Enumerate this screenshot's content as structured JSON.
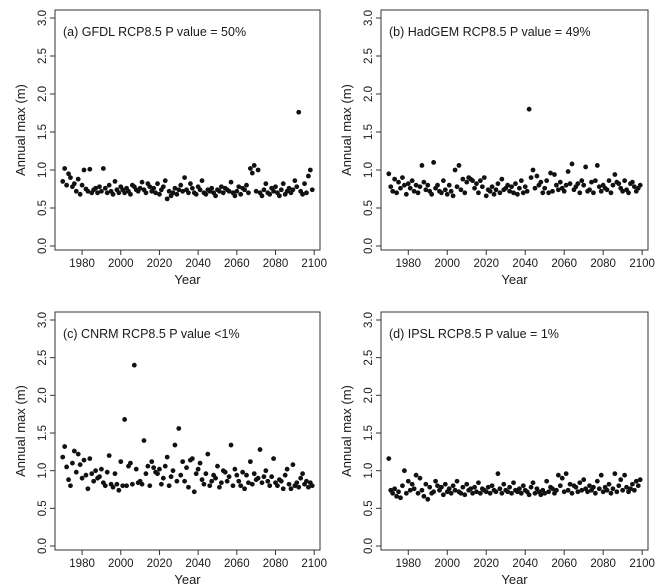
{
  "chart_data": [
    {
      "type": "scatter",
      "title": "(a) GFDL RCP8.5 P value = 50%",
      "xlabel": "Year",
      "ylabel": "Annual max (m)",
      "xlim": [
        1966,
        2103
      ],
      "ylim": [
        0,
        3
      ],
      "xticks": [
        1980,
        2000,
        2020,
        2040,
        2060,
        2080,
        2100
      ],
      "yticks": [
        0.0,
        0.5,
        1.0,
        1.5,
        2.0,
        2.5,
        3.0
      ],
      "ytick_labels": [
        "0.0",
        "0.5",
        "1.0",
        "1.5",
        "2.0",
        "2.5",
        "3.0"
      ],
      "grid": false,
      "x": [
        1970,
        1971,
        1972,
        1973,
        1974,
        1975,
        1976,
        1977,
        1978,
        1979,
        1980,
        1981,
        1982,
        1983,
        1984,
        1985,
        1986,
        1987,
        1988,
        1989,
        1990,
        1991,
        1992,
        1993,
        1994,
        1995,
        1996,
        1997,
        1998,
        1999,
        2000,
        2001,
        2002,
        2003,
        2004,
        2005,
        2006,
        2007,
        2008,
        2009,
        2010,
        2011,
        2012,
        2013,
        2014,
        2015,
        2016,
        2017,
        2018,
        2019,
        2020,
        2021,
        2022,
        2023,
        2024,
        2025,
        2026,
        2027,
        2028,
        2029,
        2030,
        2031,
        2032,
        2033,
        2034,
        2035,
        2036,
        2037,
        2038,
        2039,
        2040,
        2041,
        2042,
        2043,
        2044,
        2045,
        2046,
        2047,
        2048,
        2049,
        2050,
        2051,
        2052,
        2053,
        2054,
        2055,
        2056,
        2057,
        2058,
        2059,
        2060,
        2061,
        2062,
        2063,
        2064,
        2065,
        2066,
        2067,
        2068,
        2069,
        2070,
        2071,
        2072,
        2073,
        2074,
        2075,
        2076,
        2077,
        2078,
        2079,
        2080,
        2081,
        2082,
        2083,
        2084,
        2085,
        2086,
        2087,
        2088,
        2089,
        2090,
        2091,
        2092,
        2093,
        2094,
        2095,
        2096,
        2097,
        2098,
        2099
      ],
      "y": [
        0.85,
        1.02,
        0.8,
        0.95,
        0.9,
        0.78,
        0.82,
        0.72,
        0.88,
        0.68,
        0.8,
        1.0,
        0.75,
        0.72,
        1.01,
        0.7,
        0.74,
        0.76,
        0.7,
        0.78,
        0.72,
        1.02,
        0.76,
        0.7,
        0.8,
        0.72,
        0.68,
        0.85,
        0.74,
        0.7,
        0.78,
        0.74,
        0.7,
        0.76,
        0.72,
        0.68,
        0.8,
        0.78,
        0.74,
        0.72,
        0.76,
        0.84,
        0.74,
        0.7,
        0.82,
        0.78,
        0.72,
        0.76,
        0.7,
        0.82,
        0.68,
        0.74,
        0.78,
        0.86,
        0.62,
        0.72,
        0.66,
        0.7,
        0.76,
        0.68,
        0.74,
        0.8,
        0.72,
        0.9,
        0.74,
        0.7,
        0.82,
        0.76,
        0.7,
        0.68,
        0.78,
        0.74,
        0.86,
        0.7,
        0.68,
        0.74,
        0.72,
        0.76,
        0.7,
        0.66,
        0.74,
        0.72,
        0.78,
        0.7,
        0.76,
        0.74,
        0.72,
        0.84,
        0.7,
        0.66,
        0.72,
        0.78,
        0.68,
        0.76,
        0.74,
        0.8,
        0.7,
        1.02,
        0.96,
        1.06,
        0.72,
        1.0,
        0.7,
        0.66,
        0.74,
        0.82,
        0.7,
        0.68,
        0.76,
        0.72,
        0.78,
        0.7,
        0.66,
        0.74,
        0.82,
        0.68,
        0.72,
        0.76,
        0.7,
        0.74,
        0.86,
        0.78,
        1.76,
        0.72,
        0.68,
        0.82,
        0.7,
        0.92,
        1.0,
        0.74
      ]
    },
    {
      "type": "scatter",
      "title": "(b) HadGEM RCP8.5 P value = 49%",
      "xlabel": "Year",
      "ylabel": "Annual max (m)",
      "xlim": [
        1966,
        2103
      ],
      "ylim": [
        0,
        3
      ],
      "xticks": [
        1980,
        2000,
        2020,
        2040,
        2060,
        2080,
        2100
      ],
      "yticks": [
        0.0,
        0.5,
        1.0,
        1.5,
        2.0,
        2.5,
        3.0
      ],
      "ytick_labels": [
        "0.0",
        "0.5",
        "1.0",
        "1.5",
        "2.0",
        "2.5",
        "3.0"
      ],
      "grid": false,
      "x": [
        1970,
        1971,
        1972,
        1973,
        1974,
        1975,
        1976,
        1977,
        1978,
        1979,
        1980,
        1981,
        1982,
        1983,
        1984,
        1985,
        1986,
        1987,
        1988,
        1989,
        1990,
        1991,
        1992,
        1993,
        1994,
        1995,
        1996,
        1997,
        1998,
        1999,
        2000,
        2001,
        2002,
        2003,
        2004,
        2005,
        2006,
        2007,
        2008,
        2009,
        2010,
        2011,
        2012,
        2013,
        2014,
        2015,
        2016,
        2017,
        2018,
        2019,
        2020,
        2021,
        2022,
        2023,
        2024,
        2025,
        2026,
        2027,
        2028,
        2029,
        2030,
        2031,
        2032,
        2033,
        2034,
        2035,
        2036,
        2037,
        2038,
        2039,
        2040,
        2041,
        2042,
        2043,
        2044,
        2045,
        2046,
        2047,
        2048,
        2049,
        2050,
        2051,
        2052,
        2053,
        2054,
        2055,
        2056,
        2057,
        2058,
        2059,
        2060,
        2061,
        2062,
        2063,
        2064,
        2065,
        2066,
        2067,
        2068,
        2069,
        2070,
        2071,
        2072,
        2073,
        2074,
        2075,
        2076,
        2077,
        2078,
        2079,
        2080,
        2081,
        2082,
        2083,
        2084,
        2085,
        2086,
        2087,
        2088,
        2089,
        2090,
        2091,
        2092,
        2093,
        2094,
        2095,
        2096,
        2097,
        2098,
        2099
      ],
      "y": [
        0.95,
        0.78,
        0.72,
        0.88,
        0.7,
        0.84,
        0.76,
        0.9,
        0.8,
        0.68,
        0.82,
        0.76,
        0.86,
        0.72,
        0.8,
        0.7,
        0.78,
        1.06,
        0.84,
        0.74,
        0.8,
        0.72,
        0.68,
        1.1,
        0.76,
        0.8,
        0.72,
        0.7,
        0.86,
        0.74,
        0.68,
        0.8,
        0.72,
        0.66,
        1.0,
        0.78,
        1.06,
        0.74,
        0.88,
        0.7,
        0.84,
        0.9,
        0.88,
        0.86,
        0.76,
        0.82,
        0.7,
        0.86,
        0.78,
        0.9,
        0.66,
        0.74,
        0.72,
        0.78,
        0.68,
        0.74,
        0.82,
        0.7,
        0.88,
        0.74,
        0.76,
        0.8,
        0.72,
        0.78,
        0.7,
        0.82,
        0.68,
        0.76,
        0.86,
        0.7,
        0.78,
        0.72,
        1.8,
        0.9,
        1.0,
        0.76,
        0.92,
        0.8,
        0.84,
        0.7,
        0.76,
        0.86,
        0.7,
        0.96,
        0.72,
        0.94,
        0.8,
        0.74,
        0.84,
        0.76,
        0.72,
        0.8,
        0.98,
        0.82,
        1.08,
        0.74,
        0.78,
        0.82,
        0.7,
        0.86,
        0.8,
        1.04,
        0.72,
        0.74,
        0.84,
        0.7,
        0.86,
        1.06,
        0.78,
        0.72,
        0.8,
        0.76,
        0.74,
        0.86,
        0.7,
        0.8,
        0.94,
        0.84,
        0.82,
        0.76,
        0.72,
        0.86,
        0.74,
        0.7,
        0.82,
        0.84,
        0.78,
        0.72,
        0.76,
        0.8
      ]
    },
    {
      "type": "scatter",
      "title": "(c) CNRM RCP8.5 P value <1%",
      "xlabel": "Year",
      "ylabel": "Annual max (m)",
      "xlim": [
        1966,
        2103
      ],
      "ylim": [
        0,
        3
      ],
      "xticks": [
        1980,
        2000,
        2020,
        2040,
        2060,
        2080,
        2100
      ],
      "yticks": [
        0.0,
        0.5,
        1.0,
        1.5,
        2.0,
        2.5,
        3.0
      ],
      "ytick_labels": [
        "0.0",
        "0.5",
        "1.0",
        "1.5",
        "2.0",
        "2.5",
        "3.0"
      ],
      "grid": false,
      "x": [
        1970,
        1971,
        1972,
        1973,
        1974,
        1975,
        1976,
        1977,
        1978,
        1979,
        1980,
        1981,
        1982,
        1983,
        1984,
        1985,
        1986,
        1987,
        1988,
        1989,
        1990,
        1991,
        1992,
        1993,
        1994,
        1995,
        1996,
        1997,
        1998,
        1999,
        2000,
        2001,
        2002,
        2003,
        2004,
        2005,
        2006,
        2007,
        2008,
        2009,
        2010,
        2011,
        2012,
        2013,
        2014,
        2015,
        2016,
        2017,
        2018,
        2019,
        2020,
        2021,
        2022,
        2023,
        2024,
        2025,
        2026,
        2027,
        2028,
        2029,
        2030,
        2031,
        2032,
        2033,
        2034,
        2035,
        2036,
        2037,
        2038,
        2039,
        2040,
        2041,
        2042,
        2043,
        2044,
        2045,
        2046,
        2047,
        2048,
        2049,
        2050,
        2051,
        2052,
        2053,
        2054,
        2055,
        2056,
        2057,
        2058,
        2059,
        2060,
        2061,
        2062,
        2063,
        2064,
        2065,
        2066,
        2067,
        2068,
        2069,
        2070,
        2071,
        2072,
        2073,
        2074,
        2075,
        2076,
        2077,
        2078,
        2079,
        2080,
        2081,
        2082,
        2083,
        2084,
        2085,
        2086,
        2087,
        2088,
        2089,
        2090,
        2091,
        2092,
        2093,
        2094,
        2095,
        2096,
        2097,
        2098,
        2099
      ],
      "y": [
        1.18,
        1.32,
        1.05,
        0.88,
        0.8,
        1.1,
        1.26,
        0.98,
        1.22,
        1.08,
        0.9,
        1.14,
        0.94,
        0.76,
        1.16,
        0.96,
        0.86,
        1.0,
        0.9,
        0.92,
        1.02,
        0.84,
        0.8,
        0.98,
        1.2,
        0.82,
        0.78,
        0.96,
        0.82,
        0.74,
        1.12,
        0.8,
        1.68,
        0.8,
        1.06,
        1.1,
        0.82,
        2.4,
        1.02,
        0.84,
        0.86,
        0.82,
        1.4,
        0.96,
        1.06,
        0.8,
        1.12,
        1.04,
        0.98,
        0.96,
        1.02,
        0.82,
        0.9,
        1.06,
        1.18,
        0.8,
        0.92,
        1.0,
        1.34,
        0.86,
        1.56,
        0.94,
        1.12,
        0.86,
        1.04,
        0.78,
        1.14,
        1.16,
        0.72,
        0.96,
        1.02,
        1.1,
        0.88,
        0.82,
        0.96,
        1.22,
        0.8,
        0.86,
        0.94,
        0.9,
        1.06,
        0.78,
        0.84,
        1.0,
        0.98,
        0.86,
        0.92,
        1.34,
        0.8,
        1.02,
        0.94,
        0.86,
        0.8,
        0.98,
        0.76,
        0.94,
        0.84,
        1.12,
        0.82,
        0.96,
        0.88,
        0.9,
        1.28,
        0.84,
        0.92,
        1.0,
        0.86,
        0.8,
        0.92,
        1.16,
        0.84,
        0.8,
        0.88,
        0.86,
        0.76,
        0.94,
        1.02,
        0.82,
        0.76,
        1.08,
        0.8,
        0.84,
        0.78,
        0.9,
        0.96,
        0.82,
        0.86,
        0.78,
        0.84,
        0.8
      ]
    },
    {
      "type": "scatter",
      "title": "(d) IPSL RCP8.5 P value = 1%",
      "xlabel": "Year",
      "ylabel": "Annual max (m)",
      "xlim": [
        1966,
        2103
      ],
      "ylim": [
        0,
        3
      ],
      "xticks": [
        1980,
        2000,
        2020,
        2040,
        2060,
        2080,
        2100
      ],
      "yticks": [
        0.0,
        0.5,
        1.0,
        1.5,
        2.0,
        2.5,
        3.0
      ],
      "ytick_labels": [
        "0.0",
        "0.5",
        "1.0",
        "1.5",
        "2.0",
        "2.5",
        "3.0"
      ],
      "grid": false,
      "x": [
        1970,
        1971,
        1972,
        1973,
        1974,
        1975,
        1976,
        1977,
        1978,
        1979,
        1980,
        1981,
        1982,
        1983,
        1984,
        1985,
        1986,
        1987,
        1988,
        1989,
        1990,
        1991,
        1992,
        1993,
        1994,
        1995,
        1996,
        1997,
        1998,
        1999,
        2000,
        2001,
        2002,
        2003,
        2004,
        2005,
        2006,
        2007,
        2008,
        2009,
        2010,
        2011,
        2012,
        2013,
        2014,
        2015,
        2016,
        2017,
        2018,
        2019,
        2020,
        2021,
        2022,
        2023,
        2024,
        2025,
        2026,
        2027,
        2028,
        2029,
        2030,
        2031,
        2032,
        2033,
        2034,
        2035,
        2036,
        2037,
        2038,
        2039,
        2040,
        2041,
        2042,
        2043,
        2044,
        2045,
        2046,
        2047,
        2048,
        2049,
        2050,
        2051,
        2052,
        2053,
        2054,
        2055,
        2056,
        2057,
        2058,
        2059,
        2060,
        2061,
        2062,
        2063,
        2064,
        2065,
        2066,
        2067,
        2068,
        2069,
        2070,
        2071,
        2072,
        2073,
        2074,
        2075,
        2076,
        2077,
        2078,
        2079,
        2080,
        2081,
        2082,
        2083,
        2084,
        2085,
        2086,
        2087,
        2088,
        2089,
        2090,
        2091,
        2092,
        2093,
        2094,
        2095,
        2096,
        2097,
        2098,
        2099
      ],
      "y": [
        1.16,
        0.74,
        0.7,
        0.76,
        0.66,
        0.72,
        0.64,
        0.8,
        1.0,
        0.7,
        0.86,
        0.74,
        0.82,
        0.76,
        0.94,
        0.7,
        0.9,
        0.74,
        0.66,
        0.82,
        0.62,
        0.78,
        0.7,
        0.72,
        0.86,
        0.8,
        0.74,
        0.78,
        0.68,
        0.82,
        0.72,
        0.76,
        0.7,
        0.8,
        0.74,
        0.86,
        0.72,
        0.7,
        0.78,
        0.68,
        0.82,
        0.74,
        0.76,
        0.7,
        0.78,
        0.72,
        0.84,
        0.7,
        0.76,
        0.74,
        0.72,
        0.78,
        0.7,
        0.8,
        0.74,
        0.72,
        0.96,
        0.76,
        0.7,
        0.82,
        0.74,
        0.72,
        0.78,
        0.7,
        0.84,
        0.74,
        0.72,
        0.76,
        0.7,
        0.8,
        0.74,
        0.72,
        0.68,
        0.78,
        0.84,
        0.7,
        0.76,
        0.72,
        0.68,
        0.74,
        0.7,
        0.86,
        0.72,
        0.78,
        0.76,
        0.7,
        0.74,
        0.94,
        0.8,
        0.9,
        0.72,
        0.96,
        0.74,
        0.82,
        0.7,
        0.8,
        0.78,
        0.72,
        0.84,
        0.74,
        0.88,
        0.76,
        0.72,
        0.8,
        0.74,
        0.78,
        0.7,
        0.86,
        0.76,
        0.94,
        0.72,
        0.78,
        0.74,
        0.82,
        0.7,
        0.76,
        0.96,
        0.72,
        0.8,
        0.88,
        0.74,
        0.94,
        0.78,
        0.72,
        0.76,
        0.82,
        0.74,
        0.86,
        0.8,
        0.88
      ]
    }
  ]
}
